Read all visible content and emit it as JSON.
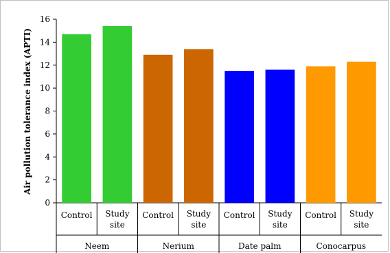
{
  "chart_data": {
    "type": "bar",
    "title": "",
    "xlabel": "",
    "ylabel": "Air pollution tolerance index (APTI)",
    "ylim": [
      0,
      16
    ],
    "yticks": [
      0,
      2,
      4,
      6,
      8,
      10,
      12,
      14,
      16
    ],
    "grid": false,
    "legend": "none",
    "groups": [
      {
        "name": "Neem",
        "color": "#33cc33",
        "bars": [
          {
            "category": "Control",
            "value": 14.7
          },
          {
            "category": "Study site",
            "value": 15.4
          }
        ]
      },
      {
        "name": "Nerium",
        "color": "#cc6600",
        "bars": [
          {
            "category": "Control",
            "value": 12.9
          },
          {
            "category": "Study site",
            "value": 13.4
          }
        ]
      },
      {
        "name": "Date palm",
        "color": "#0000ff",
        "bars": [
          {
            "category": "Control",
            "value": 11.5
          },
          {
            "category": "Study site",
            "value": 11.6
          }
        ]
      },
      {
        "name": "Conocarpus",
        "color": "#ff9900",
        "bars": [
          {
            "category": "Control",
            "value": 11.9
          },
          {
            "category": "Study site",
            "value": 12.3
          }
        ]
      }
    ]
  }
}
